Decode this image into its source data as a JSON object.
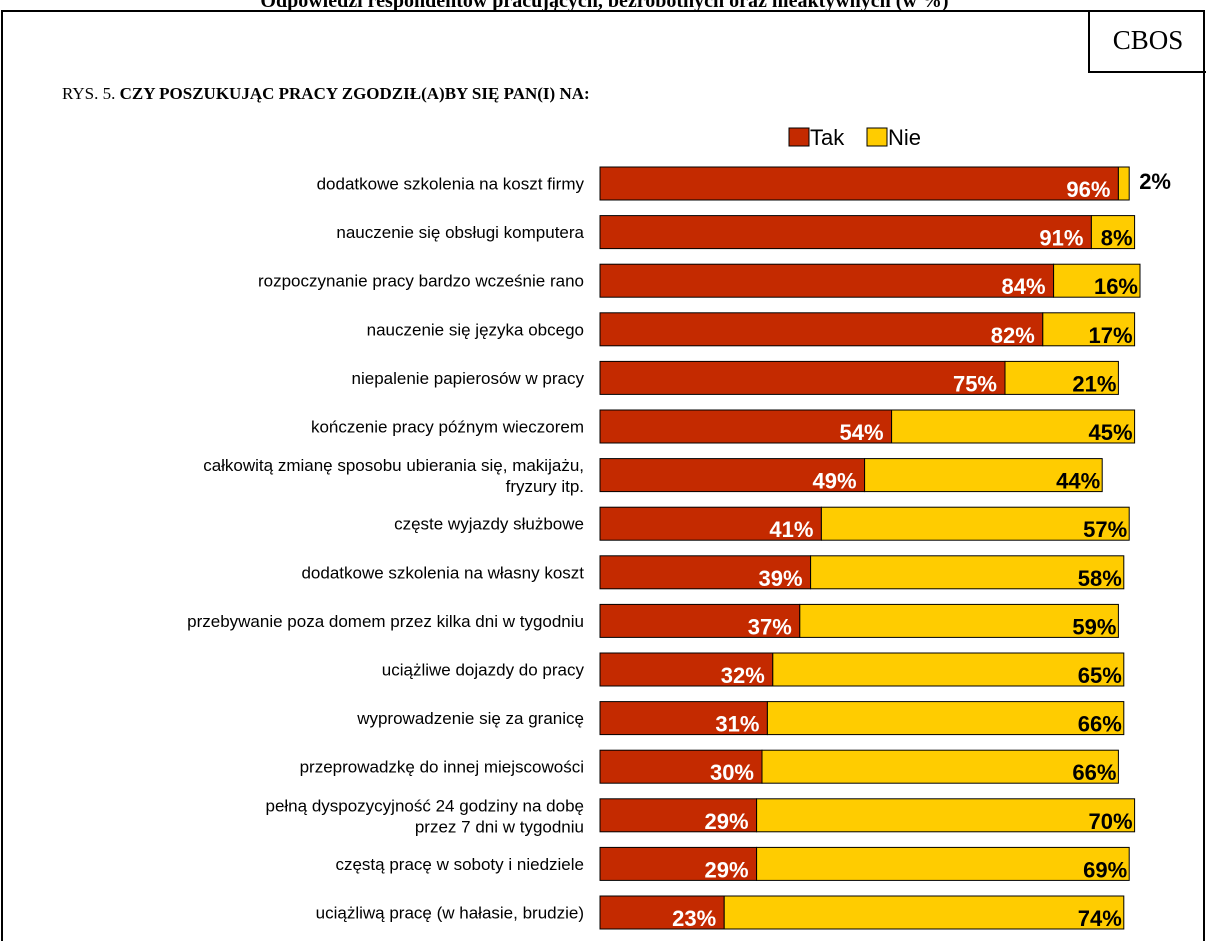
{
  "header": {
    "top_cut_text": "Odpowiedzi respondentów pracujących, bezrobotnych oraz nieaktywnych (w %)",
    "source": "CBOS",
    "figure_prefix": "RYS. 5.",
    "figure_title": "CZY POSZUKUJĄC PRACY ZGODZIŁ(A)BY SIĘ PAN(I) NA:"
  },
  "colors": {
    "tak": "#C42A00",
    "nie": "#FFCC00",
    "border": "#000000"
  },
  "chart_data": {
    "type": "bar",
    "orientation": "horizontal",
    "stacked": true,
    "unit": "%",
    "title": "CZY POSZUKUJĄC PRACY ZGODZIŁ(A)BY SIĘ PAN(I) NA:",
    "legend": {
      "placement": "top-right",
      "entries": [
        "Tak",
        "Nie"
      ]
    },
    "categories": [
      "dodatkowe szkolenia na koszt firmy",
      "nauczenie się obsługi komputera",
      "rozpoczynanie pracy bardzo wcześnie rano",
      "nauczenie się języka obcego",
      "niepalenie papierosów w pracy",
      "kończenie pracy późnym wieczorem",
      "całkowitą zmianę sposobu ubierania się, makijażu, fryzury itp.",
      "częste wyjazdy służbowe",
      "dodatkowe szkolenia na własny koszt",
      "przebywanie poza domem przez kilka dni w tygodniu",
      "uciążliwe dojazdy do pracy",
      "wyprowadzenie się za granicę",
      "przeprowadzkę do innej miejscowości",
      "pełną dyspozycyjność 24 godziny na dobę przez 7 dni w tygodniu",
      "częstą pracę w soboty i niedziele",
      "uciążliwą pracę (w hałasie, brudzie)"
    ],
    "category_lines": [
      [
        "dodatkowe szkolenia na koszt firmy"
      ],
      [
        "nauczenie się obsługi komputera"
      ],
      [
        "rozpoczynanie pracy bardzo wcześnie rano"
      ],
      [
        "nauczenie się języka obcego"
      ],
      [
        "niepalenie papierosów w pracy"
      ],
      [
        "kończenie pracy późnym wieczorem"
      ],
      [
        "całkowitą zmianę sposobu ubierania się, makijażu,",
        "fryzury itp."
      ],
      [
        "częste wyjazdy służbowe"
      ],
      [
        "dodatkowe szkolenia na własny koszt"
      ],
      [
        "przebywanie poza domem przez kilka dni w tygodniu"
      ],
      [
        "uciążliwe dojazdy do pracy"
      ],
      [
        "wyprowadzenie się za granicę"
      ],
      [
        "przeprowadzkę do innej miejscowości"
      ],
      [
        "pełną dyspozycyjność 24 godziny na dobę",
        "przez 7 dni w tygodniu"
      ],
      [
        "częstą pracę w soboty i niedziele"
      ],
      [
        "uciążliwą pracę (w hałasie, brudzie)"
      ]
    ],
    "series": [
      {
        "name": "Tak",
        "values": [
          96,
          91,
          84,
          82,
          75,
          54,
          49,
          41,
          39,
          37,
          32,
          31,
          30,
          29,
          29,
          23
        ]
      },
      {
        "name": "Nie",
        "values": [
          2,
          8,
          16,
          17,
          21,
          45,
          44,
          57,
          58,
          59,
          65,
          66,
          66,
          70,
          69,
          74
        ]
      }
    ],
    "xlim": [
      0,
      100
    ],
    "grid": false
  }
}
